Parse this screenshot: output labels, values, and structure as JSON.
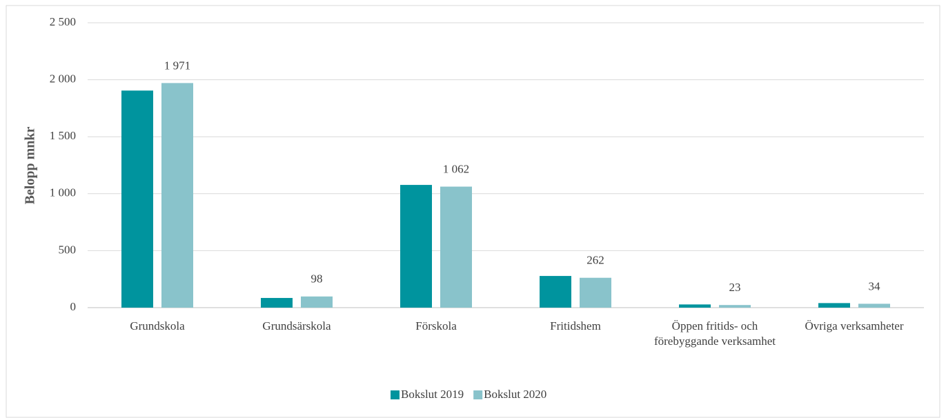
{
  "chart_data": {
    "type": "bar",
    "y_label": "Belopp mnkr",
    "categories": [
      "Grundskola",
      "Grundsärskola",
      "Förskola",
      "Fritidshem",
      "Öppen fritids- och förebyggande verksamhet",
      "Övriga verksamheter"
    ],
    "series": [
      {
        "name": "Bokslut 2019",
        "color": "#00949e",
        "values": [
          1905,
          85,
          1077,
          278,
          28,
          40
        ]
      },
      {
        "name": "Bokslut 2020",
        "color": "#89c3cb",
        "values": [
          1971,
          98,
          1062,
          262,
          23,
          34
        ],
        "value_labels": [
          "1 971",
          "98",
          "1 062",
          "262",
          "23",
          "34"
        ]
      }
    ],
    "ylim": [
      0,
      2500
    ],
    "yticks": [
      0,
      500,
      {
        "value": 1000,
        "label": "1 000"
      },
      {
        "value": 1500,
        "label": "1 500"
      },
      {
        "value": 2000,
        "label": "2 000"
      },
      {
        "value": 2500,
        "label": "2 500"
      }
    ],
    "grid": true,
    "legend": "bottom"
  }
}
